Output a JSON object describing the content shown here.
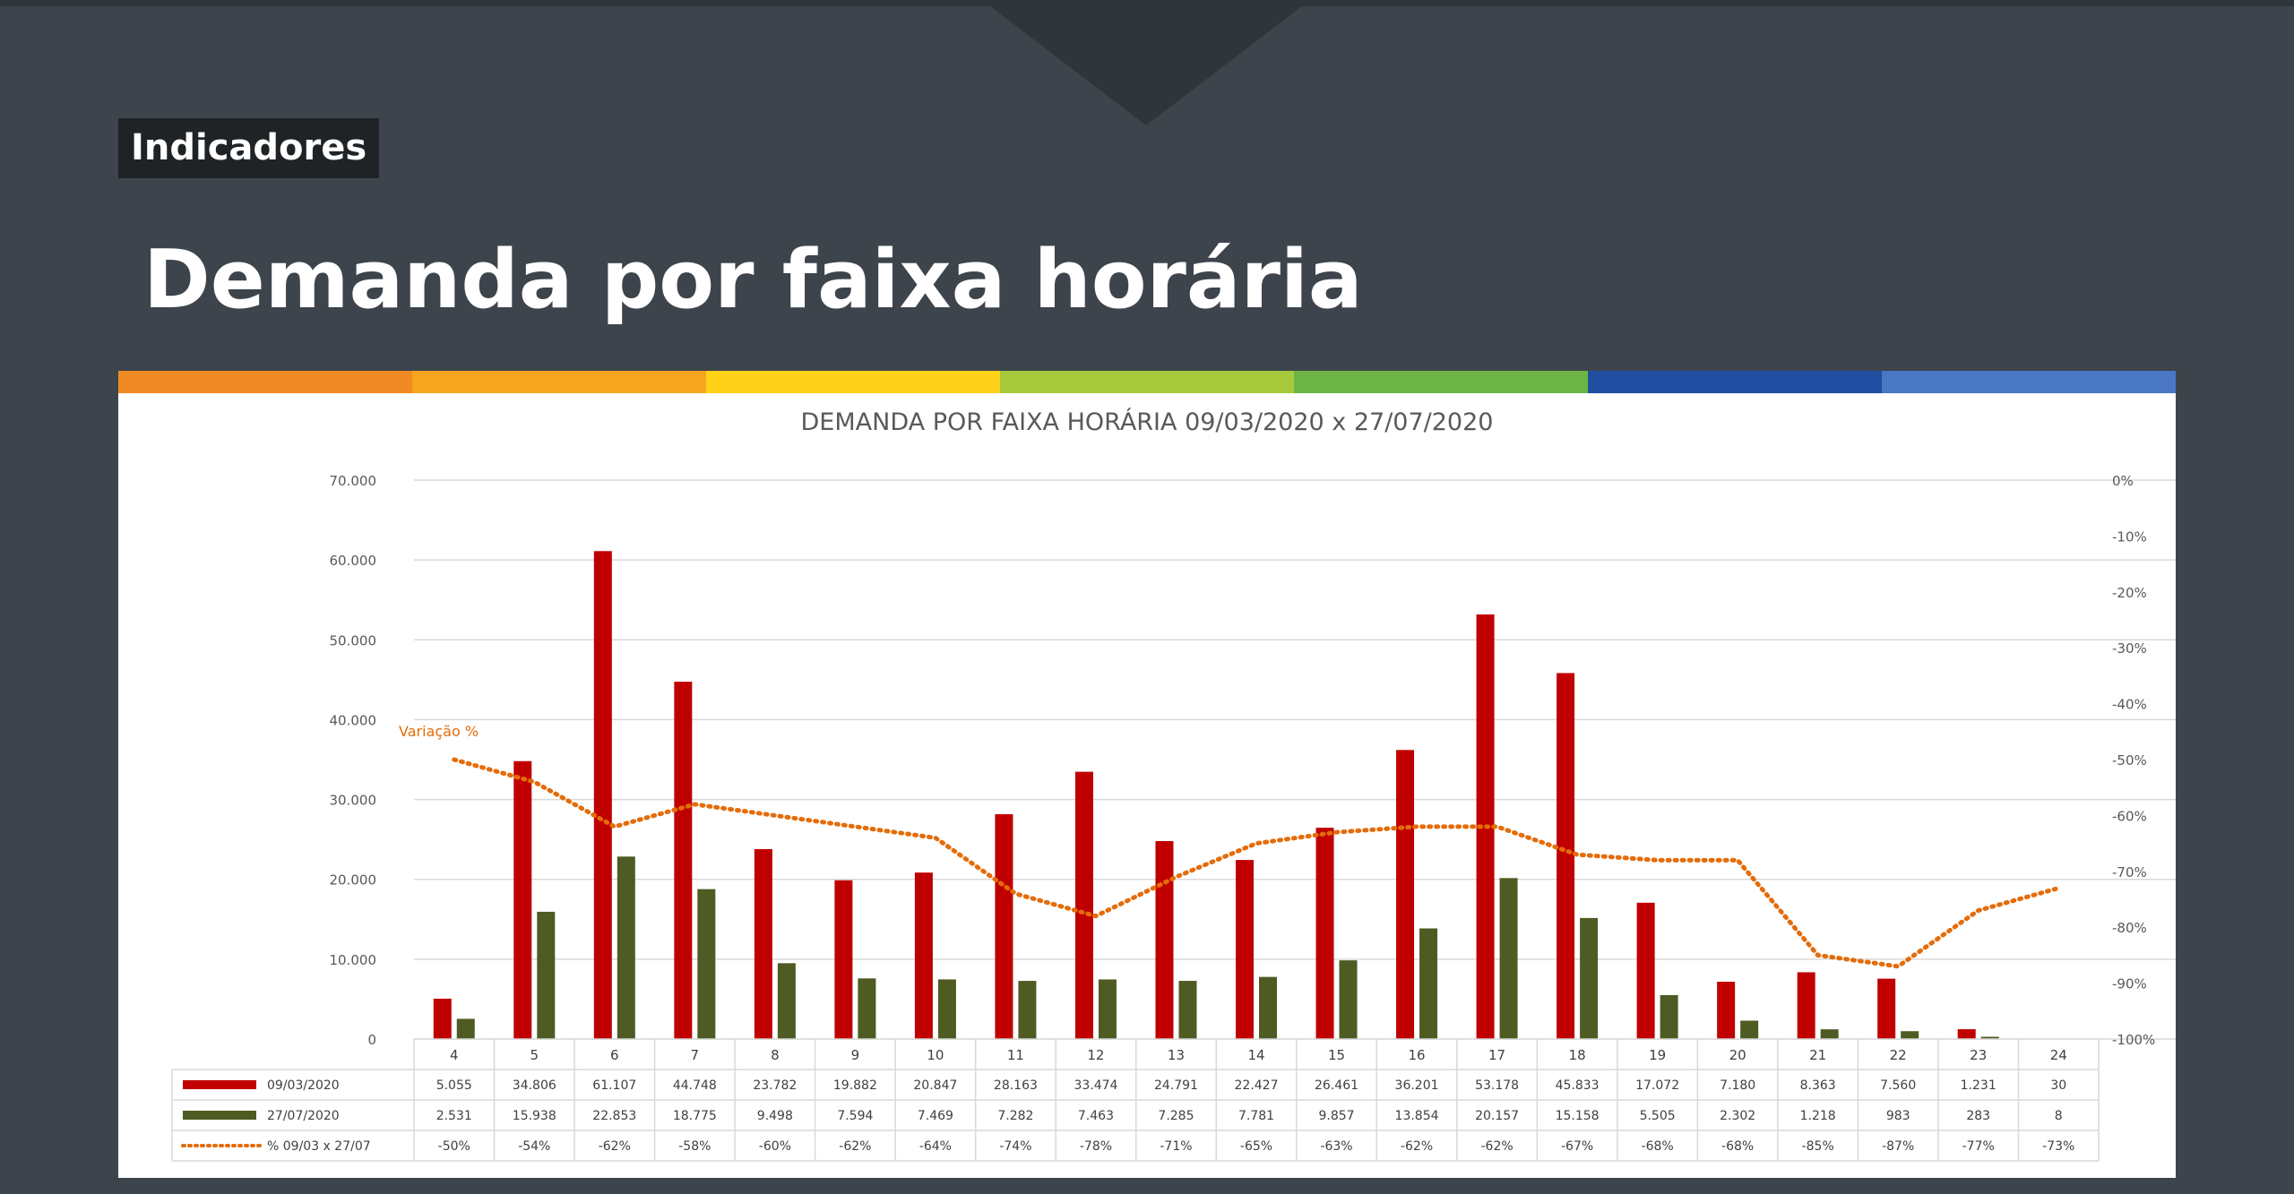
{
  "header": {
    "tag": "Indicadores",
    "title": "Demanda por faixa horária"
  },
  "stripe_colors": [
    "#f08a24",
    "#f7a51e",
    "#ffd21a",
    "#a6c93b",
    "#6cb545",
    "#1f4ea1",
    "#4a77c4"
  ],
  "chart_data": {
    "type": "bar",
    "title": "DEMANDA POR FAIXA HORÁRIA 09/03/2020 x 27/07/2020",
    "categories": [
      "4",
      "5",
      "6",
      "7",
      "8",
      "9",
      "10",
      "11",
      "12",
      "13",
      "14",
      "15",
      "16",
      "17",
      "18",
      "19",
      "20",
      "21",
      "22",
      "23",
      "24"
    ],
    "series": [
      {
        "name": "09/03/2020",
        "color": "#c00000",
        "values": [
          5055,
          34806,
          61107,
          44748,
          23782,
          19882,
          20847,
          28163,
          33474,
          24791,
          22427,
          26461,
          36201,
          53178,
          45833,
          17072,
          7180,
          8363,
          7560,
          1231,
          30
        ],
        "labels": [
          "5.055",
          "34.806",
          "61.107",
          "44.748",
          "23.782",
          "19.882",
          "20.847",
          "28.163",
          "33.474",
          "24.791",
          "22.427",
          "26.461",
          "36.201",
          "53.178",
          "45.833",
          "17.072",
          "7.180",
          "8.363",
          "7.560",
          "1.231",
          "30"
        ]
      },
      {
        "name": "27/07/2020",
        "color": "#4e5b23",
        "values": [
          2531,
          15938,
          22853,
          18775,
          9498,
          7594,
          7469,
          7282,
          7463,
          7285,
          7781,
          9857,
          13854,
          20157,
          15158,
          5505,
          2302,
          1218,
          983,
          283,
          8
        ],
        "labels": [
          "2.531",
          "15.938",
          "22.853",
          "18.775",
          "9.498",
          "7.594",
          "7.469",
          "7.282",
          "7.463",
          "7.285",
          "7.781",
          "9.857",
          "13.854",
          "20.157",
          "15.158",
          "5.505",
          "2.302",
          "1.218",
          "983",
          "283",
          "8"
        ]
      },
      {
        "name": "% 09/03 x 27/07",
        "color": "#e46c0a",
        "type": "line",
        "axis": "right",
        "values": [
          -50,
          -54,
          -62,
          -58,
          -60,
          -62,
          -64,
          -74,
          -78,
          -71,
          -65,
          -63,
          -62,
          -62,
          -67,
          -68,
          -68,
          -85,
          -87,
          -77,
          -73
        ],
        "labels": [
          "-50%",
          "-54%",
          "-62%",
          "-58%",
          "-60%",
          "-62%",
          "-64%",
          "-74%",
          "-78%",
          "-71%",
          "-65%",
          "-63%",
          "-62%",
          "-62%",
          "-67%",
          "-68%",
          "-68%",
          "-85%",
          "-87%",
          "-77%",
          "-73%"
        ]
      }
    ],
    "y_left": {
      "ylim": [
        0,
        70000
      ],
      "ticks": [
        "0",
        "10.000",
        "20.000",
        "30.000",
        "40.000",
        "50.000",
        "60.000",
        "70.000"
      ]
    },
    "y_right": {
      "ylim": [
        -100,
        0
      ],
      "ticks": [
        "-100%",
        "-90%",
        "-80%",
        "-70%",
        "-60%",
        "-50%",
        "-40%",
        "-30%",
        "-20%",
        "-10%",
        "0%"
      ]
    },
    "annotation": "Variação %",
    "grid": true,
    "legend": "table-below"
  }
}
